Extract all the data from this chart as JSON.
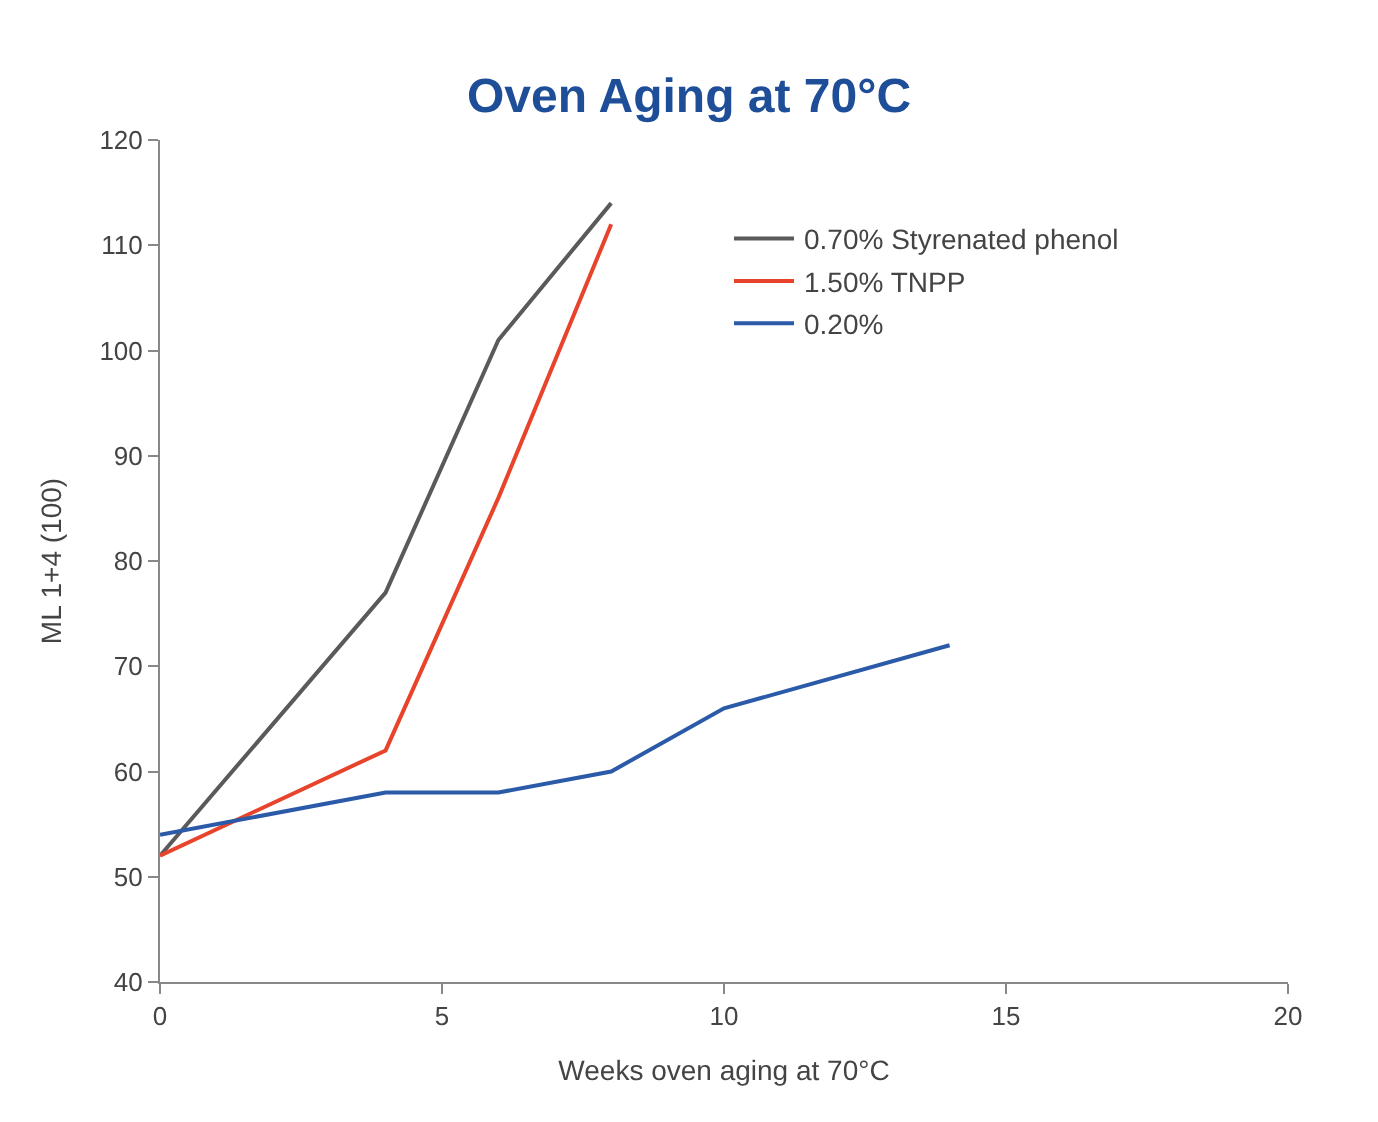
{
  "chart_data": {
    "type": "line",
    "title": "Oven Aging at 70°C",
    "xlabel": "Weeks oven aging at 70°C",
    "ylabel": "ML 1+4 (100)",
    "series": [
      {
        "name": "0.70% Styrenated phenol",
        "color": "#5a5a5a",
        "x": [
          0,
          4,
          6,
          8
        ],
        "values": [
          52,
          77,
          101,
          114
        ]
      },
      {
        "name": "1.50% TNPP",
        "color": "#e8432b",
        "x": [
          0,
          4,
          6,
          8
        ],
        "values": [
          52,
          62,
          86,
          112
        ]
      },
      {
        "name": "0.20%",
        "color": "#2a5aa8",
        "x": [
          0,
          4,
          6,
          8,
          10,
          14
        ],
        "values": [
          54,
          58,
          58,
          60,
          66,
          72
        ]
      }
    ],
    "xlim": [
      0,
      20
    ],
    "xticks": [
      0,
      5,
      10,
      15,
      20
    ],
    "ylim": [
      40,
      120
    ],
    "yticks": [
      40,
      50,
      60,
      70,
      80,
      90,
      100,
      110,
      120
    ],
    "legend": "top right",
    "marker": "none",
    "line_style": "solid"
  }
}
